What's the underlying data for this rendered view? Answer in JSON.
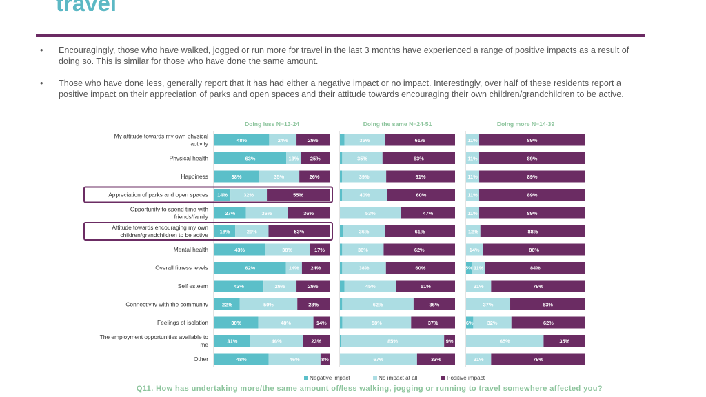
{
  "page": {
    "title": "travel",
    "bullets": [
      "Encouragingly, those who have walked, jogged or run more for travel in the last 3 months have experienced a range of positive impacts as a result of doing so. This is similar for those who have done the same amount.",
      "Those who have done less, generally report that it has had either a negative impact or no impact. Interestingly, over half of these residents report a positive impact on their appreciation of parks and open spaces and their attitude towards encouraging their own children/grandchildren to be active."
    ],
    "bullet_symbol": "•",
    "question": "Q11. How has undertaking more/the same amount of/less walking, jogging or running to travel somewhere affected you?"
  },
  "chart_data": {
    "type": "bar",
    "stacked": true,
    "orientation": "horizontal",
    "normalized": "percent",
    "colors": {
      "negative": "#5bbfc9",
      "none": "#acdde3",
      "positive": "#6b2c63",
      "title": "#8cc49c",
      "highlight": "#6b2c63"
    },
    "categories": [
      "My attitude towards my own physical activity",
      "Physical health",
      "Happiness",
      "Appreciation of parks and open spaces",
      "Opportunity to spend time with friends/family",
      "Attitude towards encouraging my own children/grandchildren to be active",
      "Mental health",
      "Overall fitness levels",
      "Self esteem",
      "Connectivity with the community",
      "Feelings of isolation",
      "The employment opportunities available to me",
      "Other"
    ],
    "category_lines": [
      [
        "My attitude towards my own physical",
        "activity"
      ],
      [
        "Physical health"
      ],
      [
        "Happiness"
      ],
      [
        "Appreciation of parks and open spaces"
      ],
      [
        "Opportunity to spend time with",
        "friends/family"
      ],
      [
        "Attitude towards encouraging my own",
        "children/grandchildren to be active"
      ],
      [
        "Mental health"
      ],
      [
        "Overall fitness levels"
      ],
      [
        "Self esteem"
      ],
      [
        "Connectivity with the community"
      ],
      [
        "Feelings of isolation"
      ],
      [
        "The employment opportunities available to",
        "me"
      ],
      [
        "Other"
      ]
    ],
    "highlighted_categories": [
      3,
      5
    ],
    "legend": [
      "Negative impact",
      "No impact at all",
      "Positive impact"
    ],
    "legend_position": "bottom",
    "panels": [
      {
        "title": "Doing less N=13-24",
        "negative": [
          48,
          63,
          38,
          14,
          27,
          18,
          43,
          62,
          43,
          22,
          38,
          31,
          48
        ],
        "none": [
          24,
          13,
          35,
          32,
          36,
          29,
          38,
          14,
          29,
          50,
          48,
          46,
          46
        ],
        "positive": [
          29,
          25,
          26,
          55,
          36,
          53,
          17,
          24,
          29,
          28,
          14,
          23,
          8
        ]
      },
      {
        "title": "Doing the same N=24-51",
        "negative": [
          4,
          2,
          2,
          2,
          0,
          3,
          2,
          2,
          4,
          2,
          2,
          1,
          0
        ],
        "none": [
          35,
          35,
          39,
          40,
          53,
          36,
          36,
          38,
          45,
          62,
          58,
          85,
          67
        ],
        "positive": [
          61,
          63,
          61,
          60,
          47,
          61,
          62,
          60,
          51,
          36,
          37,
          9,
          33
        ]
      },
      {
        "title": "Doing more N=14-39",
        "negative": [
          0,
          0,
          0,
          0,
          0,
          0,
          0,
          5,
          0,
          0,
          6,
          0,
          0
        ],
        "none": [
          11,
          11,
          11,
          11,
          11,
          12,
          14,
          11,
          21,
          37,
          32,
          65,
          21
        ],
        "positive": [
          89,
          89,
          89,
          89,
          89,
          88,
          86,
          84,
          79,
          63,
          62,
          35,
          79
        ]
      }
    ]
  }
}
